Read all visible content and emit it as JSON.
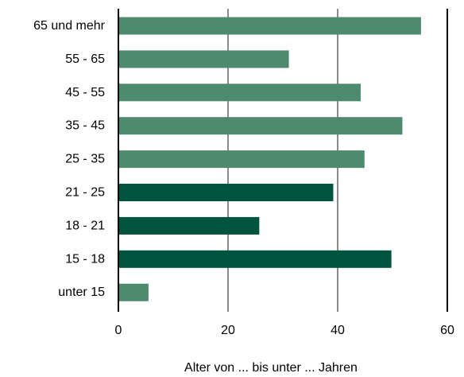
{
  "chart_data": {
    "type": "bar",
    "orientation": "horizontal",
    "categories": [
      "65 und mehr",
      "55 - 65",
      "45 - 55",
      "35 - 45",
      "25 - 35",
      "21 - 25",
      "18 - 21",
      "15 - 18",
      "unter 15"
    ],
    "values": [
      55.2,
      31.1,
      44.2,
      51.8,
      44.9,
      39.2,
      25.7,
      49.8,
      5.5
    ],
    "bar_colors": [
      "#4e8a6e",
      "#4e8a6e",
      "#4e8a6e",
      "#4e8a6e",
      "#4e8a6e",
      "#00533c",
      "#00533c",
      "#00533c",
      "#4e8a6e"
    ],
    "xlabel": "Alter von ... bis unter ... Jahren",
    "xlim": [
      0,
      60
    ],
    "xticks": [
      0,
      20,
      40,
      60
    ],
    "grid": "vertical",
    "colors": {
      "grid": "#8c8c8c",
      "axis": "#000000"
    }
  }
}
